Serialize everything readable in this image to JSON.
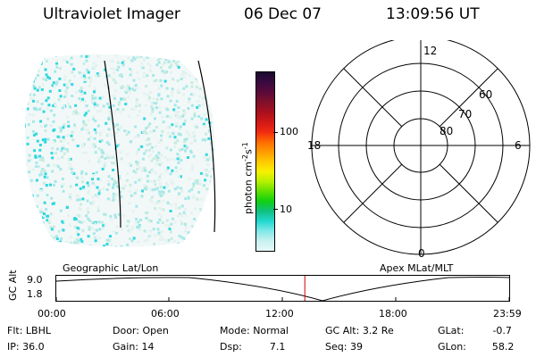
{
  "header": {
    "instrument": "Ultraviolet Imager",
    "date": "06 Dec 07",
    "time": "13:09:56 UT"
  },
  "colorbar": {
    "unit_label": "photon cm",
    "unit_sup1": "-2",
    "unit_mid": "s",
    "unit_sup2": "-1",
    "ticks": [
      "100",
      "10"
    ],
    "colors": [
      "#1a0a30",
      "#3a0a40",
      "#5a0a3a",
      "#80102a",
      "#a8101e",
      "#d01818",
      "#f02a10",
      "#ff6a00",
      "#ff9a00",
      "#ffc800",
      "#f8f000",
      "#b8f000",
      "#60e000",
      "#10d010",
      "#10c080",
      "#20d8d0",
      "#80e8e8",
      "#c8f0f0",
      "#e8f8f8"
    ]
  },
  "polar": {
    "labels": {
      "top": "12",
      "bottom": "0",
      "left": "18",
      "right": "6"
    },
    "lat_labels": [
      "60",
      "70",
      "80"
    ]
  },
  "timeline": {
    "y_axis_label": "GC Alt",
    "y_ticks": [
      "9.0",
      "1.8"
    ],
    "left_label": "Geographic Lat/Lon",
    "right_label": "Apex MLat/MLT",
    "x_ticks": [
      "00:00",
      "06:00",
      "12:00",
      "18:00",
      "23:59"
    ],
    "current_time_hours": 13.17,
    "marker_color": "#cc0000"
  },
  "status": {
    "row1": [
      {
        "label": "Flt:",
        "value": "LBHL"
      },
      {
        "label": "Door:",
        "value": "Open"
      },
      {
        "label": "Mode:",
        "value": "Normal"
      },
      {
        "label": "GC Alt:",
        "value": "3.2 Re"
      },
      {
        "label": "GLat:",
        "value": "-0.7"
      }
    ],
    "row2": [
      {
        "label": "IP:",
        "value": "36.0"
      },
      {
        "label": "Gain:",
        "value": "14"
      },
      {
        "label": "Dsp:",
        "value": "7.1"
      },
      {
        "label": "Seq:",
        "value": "39"
      },
      {
        "label": "GLon:",
        "value": "58.2"
      }
    ]
  }
}
